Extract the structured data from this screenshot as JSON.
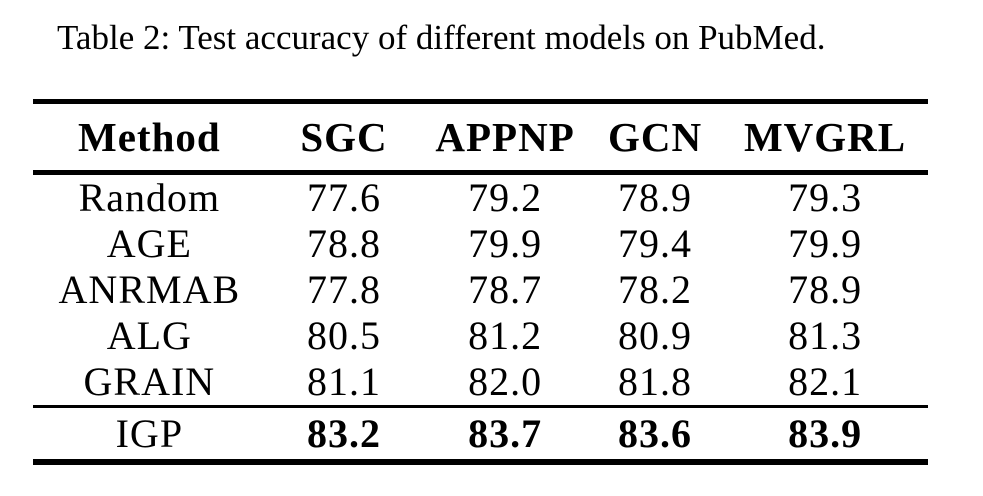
{
  "caption": "Table 2: Test accuracy of different models on PubMed.",
  "colors": {
    "text": "#000000",
    "background": "#ffffff",
    "rule": "#000000"
  },
  "table": {
    "columns": [
      "Method",
      "SGC",
      "APPNP",
      "GCN",
      "MVGRL"
    ],
    "rows": [
      {
        "method": "Random",
        "values": [
          "77.6",
          "79.2",
          "78.9",
          "79.3"
        ],
        "bold": false
      },
      {
        "method": "AGE",
        "values": [
          "78.8",
          "79.9",
          "79.4",
          "79.9"
        ],
        "bold": false
      },
      {
        "method": "ANRMAB",
        "values": [
          "77.8",
          "78.7",
          "78.2",
          "78.9"
        ],
        "bold": false
      },
      {
        "method": "ALG",
        "values": [
          "80.5",
          "81.2",
          "80.9",
          "81.3"
        ],
        "bold": false
      },
      {
        "method": "GRAIN",
        "values": [
          "81.1",
          "82.0",
          "81.8",
          "82.1"
        ],
        "bold": false
      },
      {
        "method": "IGP",
        "values": [
          "83.2",
          "83.7",
          "83.6",
          "83.9"
        ],
        "bold": true
      }
    ]
  },
  "chart_data": {
    "type": "table",
    "title": "Table 2: Test accuracy of different models on PubMed.",
    "columns": [
      "Method",
      "SGC",
      "APPNP",
      "GCN",
      "MVGRL"
    ],
    "rows": [
      [
        "Random",
        77.6,
        79.2,
        78.9,
        79.3
      ],
      [
        "AGE",
        78.8,
        79.9,
        79.4,
        79.9
      ],
      [
        "ANRMAB",
        77.8,
        78.7,
        78.2,
        78.9
      ],
      [
        "ALG",
        80.5,
        81.2,
        80.9,
        81.3
      ],
      [
        "GRAIN",
        81.1,
        82.0,
        81.8,
        82.1
      ],
      [
        "IGP",
        83.2,
        83.7,
        83.6,
        83.9
      ]
    ],
    "bold_row": "IGP"
  }
}
